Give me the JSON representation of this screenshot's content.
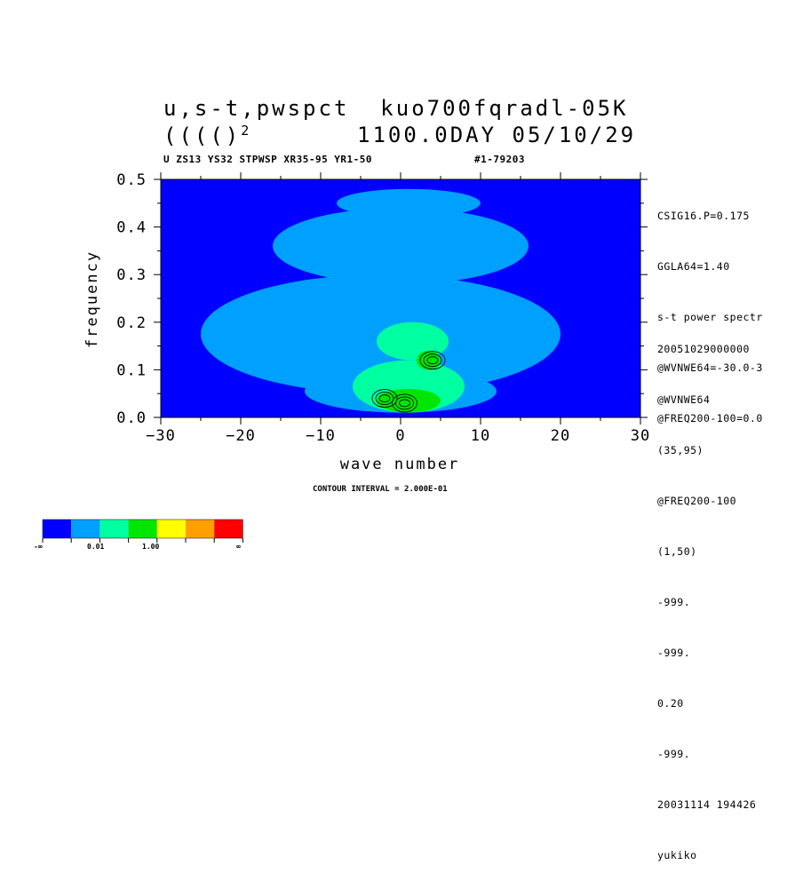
{
  "header": {
    "title_line1": "u,s-t,pwspct  kuo700fqradl-05K",
    "title_line2_left": "(((()",
    "title_line2_sup": "2",
    "title_line2_right": "1100.0DAY 05/10/29",
    "subtitle_left": "U ZS13 YS32 STPWSP XR35-95 YR1-50",
    "subtitle_right": "#1-79203"
  },
  "side_info": {
    "top": [
      "CSIG16.P=0.175",
      "GGLA64=1.40",
      "s-t power spectr",
      "@WVNWE64=-30.0-3",
      "@FREQ200-100=0.0"
    ],
    "bottom": [
      "20051029000000",
      "@WVNWE64",
      "(35,95)",
      "@FREQ200-100",
      "(1,50)",
      "-999.",
      "-999.",
      "0.20",
      "-999.",
      "20031114 194426",
      "yukiko"
    ]
  },
  "footer": {
    "contour_interval": "CONTOUR INTERVAL = 2.000E-01"
  },
  "colorbar": {
    "colors": [
      "#0000ff",
      "#00a0ff",
      "#00ffa0",
      "#00e600",
      "#ffff00",
      "#ffa000",
      "#ff0000"
    ],
    "labels": [
      "-∞",
      "0.01",
      "1.00",
      "∞"
    ]
  },
  "chart_data": {
    "type": "heatmap",
    "title": "u,s-t,pwspct  kuo700fqradl-05K",
    "xlabel": "wave number",
    "ylabel": "frequency",
    "xlim": [
      -30,
      30
    ],
    "ylim": [
      0.0,
      0.5
    ],
    "x_ticks": [
      "−30",
      "−20",
      "−10",
      "0",
      "10",
      "20",
      "30"
    ],
    "x_tick_values": [
      -30,
      -20,
      -10,
      0,
      10,
      20,
      30
    ],
    "y_ticks": [
      "0.0",
      "0.1",
      "0.2",
      "0.3",
      "0.4",
      "0.5"
    ],
    "y_tick_values": [
      0.0,
      0.1,
      0.2,
      0.3,
      0.4,
      0.5
    ],
    "levels": [
      0.01,
      1.0
    ],
    "contour_interval": 0.2,
    "colors": [
      "#0000ff",
      "#00a0ff",
      "#00ffa0",
      "#00e600"
    ],
    "regions": [
      {
        "level": 1,
        "x": [
          -12,
          12
        ],
        "y": [
          0.01,
          0.1
        ]
      },
      {
        "level": 1,
        "x": [
          -25,
          20
        ],
        "y": [
          0.05,
          0.3
        ]
      },
      {
        "level": 1,
        "x": [
          -16,
          16
        ],
        "y": [
          0.28,
          0.44
        ]
      },
      {
        "level": 1,
        "x": [
          -8,
          10
        ],
        "y": [
          0.42,
          0.48
        ]
      },
      {
        "level": 2,
        "x": [
          -6,
          8
        ],
        "y": [
          0.01,
          0.12
        ]
      },
      {
        "level": 2,
        "x": [
          -3,
          6
        ],
        "y": [
          0.12,
          0.2
        ]
      },
      {
        "level": 3,
        "x": [
          -3,
          5
        ],
        "y": [
          0.01,
          0.06
        ]
      },
      {
        "level": 3,
        "x": [
          2,
          5
        ],
        "y": [
          0.1,
          0.14
        ]
      }
    ],
    "contour_centers": [
      [
        -2.0,
        0.04
      ],
      [
        0.5,
        0.03
      ],
      [
        4.0,
        0.12
      ]
    ]
  }
}
